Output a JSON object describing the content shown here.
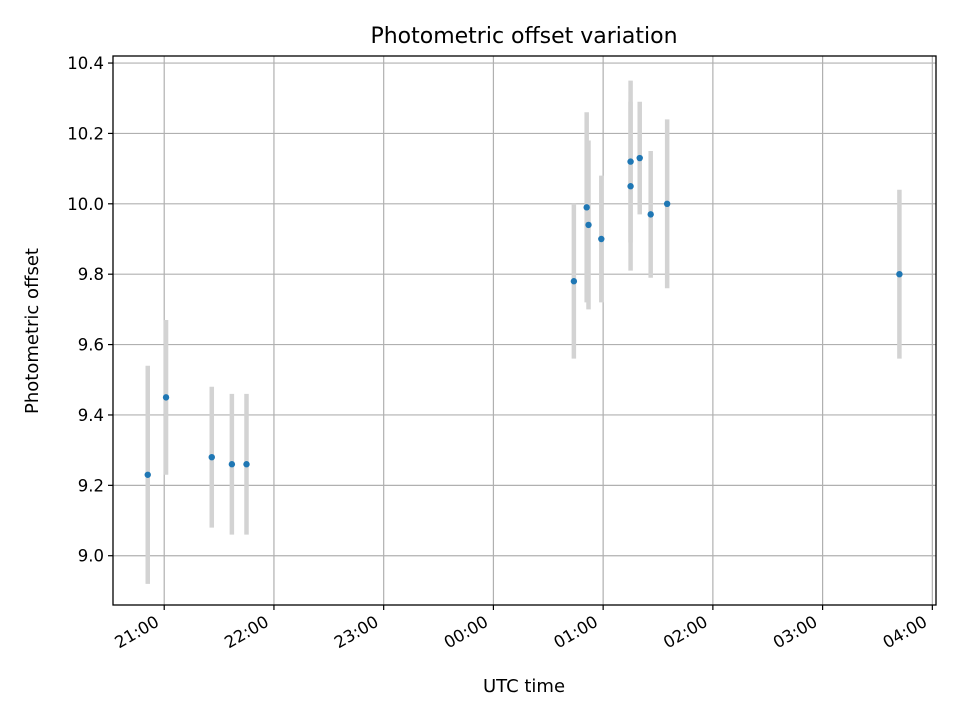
{
  "chart_data": {
    "type": "scatter",
    "title": "Photometric offset variation",
    "xlabel": "UTC time",
    "ylabel": "Photometric offset",
    "x_ticks": [
      "21:00",
      "22:00",
      "23:00",
      "00:00",
      "01:00",
      "02:00",
      "03:00",
      "04:00"
    ],
    "y_ticks": [
      "9.0",
      "9.2",
      "9.4",
      "9.6",
      "9.8",
      "10.0",
      "10.2",
      "10.4"
    ],
    "ylim": [
      8.86,
      10.42
    ],
    "xlim": [
      "20:32",
      "04:02"
    ],
    "grid": true,
    "colors": {
      "marker": "#1f77b4",
      "errorbar": "#d3d3d3",
      "grid": "#b0b0b0"
    },
    "series": [
      {
        "points": [
          {
            "time": "20:51",
            "y": 9.23,
            "err": 0.31
          },
          {
            "time": "21:01",
            "y": 9.45,
            "err": 0.22
          },
          {
            "time": "21:26",
            "y": 9.28,
            "err": 0.2
          },
          {
            "time": "21:37",
            "y": 9.26,
            "err": 0.2
          },
          {
            "time": "21:45",
            "y": 9.26,
            "err": 0.2
          },
          {
            "time": "00:44",
            "y": 9.78,
            "err": 0.22
          },
          {
            "time": "00:51",
            "y": 9.99,
            "err": 0.27
          },
          {
            "time": "00:52",
            "y": 9.94,
            "err": 0.24
          },
          {
            "time": "00:59",
            "y": 9.9,
            "err": 0.18
          },
          {
            "time": "01:15",
            "y": 10.05,
            "err": 0.24
          },
          {
            "time": "01:15",
            "y": 10.12,
            "err": 0.23
          },
          {
            "time": "01:20",
            "y": 10.13,
            "err": 0.16
          },
          {
            "time": "01:26",
            "y": 9.97,
            "err": 0.18
          },
          {
            "time": "01:35",
            "y": 10.0,
            "err": 0.24
          },
          {
            "time": "03:42",
            "y": 9.8,
            "err": 0.24
          }
        ]
      }
    ]
  }
}
